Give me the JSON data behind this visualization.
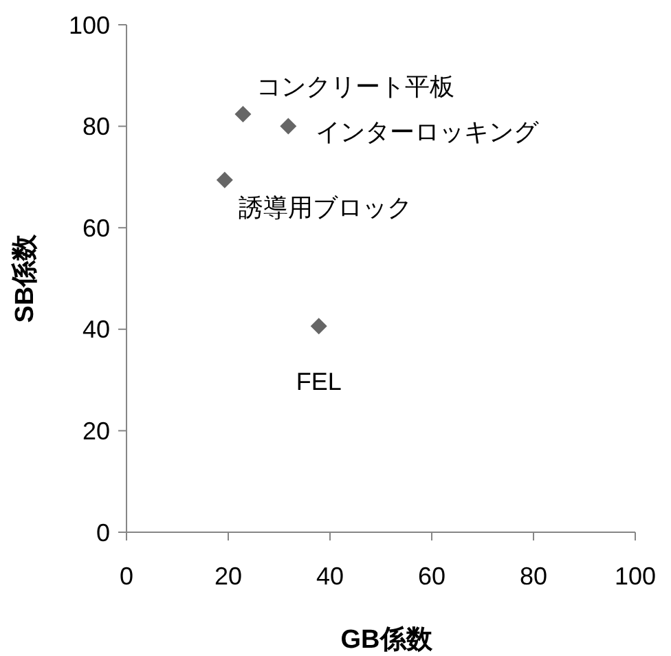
{
  "chart_data": {
    "type": "scatter",
    "xlabel": "GB係数",
    "ylabel": "SB係数",
    "x": [
      22.9,
      31.8,
      19.3,
      37.8
    ],
    "values": [
      82.4,
      80.0,
      69.4,
      40.6
    ],
    "color": "#666666",
    "marker": "diamond",
    "grid": false,
    "xlim": [
      0,
      100
    ],
    "ylim": [
      0,
      100
    ],
    "xticks": [
      0,
      20,
      40,
      60,
      80,
      100
    ],
    "yticks": [
      0,
      20,
      40,
      60,
      80,
      100
    ],
    "annotations": [
      {
        "text": "コンクリート平板",
        "x": 22.9,
        "y": 82.4
      },
      {
        "text": "インターロッキング",
        "x": 31.8,
        "y": 80.0
      },
      {
        "text": "誘導用ブロック",
        "x": 19.3,
        "y": 69.4
      },
      {
        "text": "FEL",
        "x": 37.8,
        "y": 40.6
      }
    ]
  }
}
